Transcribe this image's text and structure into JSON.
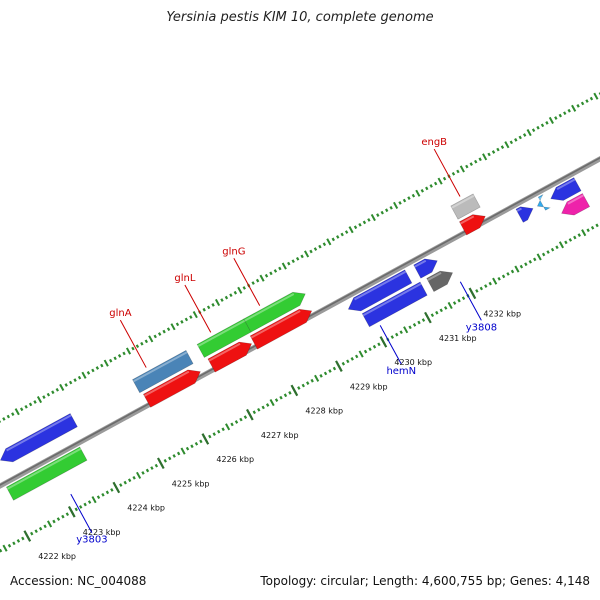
{
  "title": "Yersinia pestis KIM 10, complete genome",
  "footer": {
    "accession": "Accession: NC_004088",
    "summary": "Topology: circular; Length: 4,600,755 bp; Genes: 4,148"
  },
  "colors": {
    "backbone": "#8a8a8a",
    "tick": "#2e8b2e",
    "kbp_tick": "#2f6f2f",
    "forward_label": "#cc0000",
    "reverse_label": "#0000cc"
  },
  "map": {
    "kbp_ticks": [
      {
        "kbp": 4222,
        "label": "4222 kbp"
      },
      {
        "kbp": 4223,
        "label": "4223 kbp"
      },
      {
        "kbp": 4224,
        "label": "4224 kbp"
      },
      {
        "kbp": 4225,
        "label": "4225 kbp"
      },
      {
        "kbp": 4226,
        "label": "4226 kbp"
      },
      {
        "kbp": 4227,
        "label": "4227 kbp"
      },
      {
        "kbp": 4228,
        "label": "4228 kbp"
      },
      {
        "kbp": 4229,
        "label": "4229 kbp"
      },
      {
        "kbp": 4230,
        "label": "4230 kbp"
      },
      {
        "kbp": 4231,
        "label": "4231 kbp"
      },
      {
        "kbp": 4232,
        "label": "4232 kbp"
      }
    ],
    "features": [
      {
        "track": "f2",
        "start": 4222.25,
        "end": 4223.9,
        "color": "#2b33e0",
        "arrow": "left"
      },
      {
        "track": "r1",
        "start": 4222.1,
        "end": 4223.75,
        "color": "#33cc33",
        "arrow": "none"
      },
      {
        "track": "f2",
        "start": 4225.3,
        "end": 4226.5,
        "color": "#4a84b7",
        "arrow": "none"
      },
      {
        "track": "f1",
        "start": 4225.35,
        "end": 4226.55,
        "color": "#ee1111",
        "arrow": "right"
      },
      {
        "track": "f2",
        "start": 4226.75,
        "end": 4227.8,
        "color": "#33cc33",
        "arrow": "none"
      },
      {
        "track": "f1",
        "start": 4226.8,
        "end": 4227.7,
        "color": "#ee1111",
        "arrow": "right"
      },
      {
        "track": "f2",
        "start": 4227.8,
        "end": 4229.1,
        "color": "#33cc33",
        "arrow": "right"
      },
      {
        "track": "f1",
        "start": 4227.75,
        "end": 4229.05,
        "color": "#ee1111",
        "arrow": "right"
      },
      {
        "track": "r1",
        "start": 4229.7,
        "end": 4231.05,
        "color": "#2b33e0",
        "arrow": "left"
      },
      {
        "track": "r2",
        "start": 4229.9,
        "end": 4231.2,
        "color": "#2b33e0",
        "arrow": "none"
      },
      {
        "track": "r1",
        "start": 4231.25,
        "end": 4231.7,
        "color": "#2b33e0",
        "arrow": "right"
      },
      {
        "track": "r2",
        "start": 4231.35,
        "end": 4231.85,
        "color": "#666666",
        "arrow": "right"
      },
      {
        "track": "f2",
        "start": 4232.45,
        "end": 4232.95,
        "color": "#bbbbbb",
        "arrow": "none"
      },
      {
        "track": "f1",
        "start": 4232.45,
        "end": 4232.95,
        "color": "#ee1111",
        "arrow": "right"
      },
      {
        "track": "r1",
        "start": 4233.55,
        "end": 4233.85,
        "color": "#2b33e0",
        "arrow": "right"
      },
      {
        "track": "r1",
        "start": 4233.95,
        "end": 4234.05,
        "color": "#33aaee",
        "arrow": "left"
      },
      {
        "track": "r1",
        "start": 4234.25,
        "end": 4234.85,
        "color": "#2b33e0",
        "arrow": "left"
      },
      {
        "track": "r2",
        "start": 4234.3,
        "end": 4234.85,
        "color": "#ee22aa",
        "arrow": "left"
      }
    ],
    "gene_labels": [
      {
        "text": "glnA",
        "color": "#cc0000",
        "pos": 4225.65,
        "side": "top"
      },
      {
        "text": "glnL",
        "color": "#cc0000",
        "pos": 4227.1,
        "side": "top"
      },
      {
        "text": "glnG",
        "color": "#cc0000",
        "pos": 4228.2,
        "side": "top"
      },
      {
        "text": "engB",
        "color": "#cc0000",
        "pos": 4232.7,
        "side": "top"
      },
      {
        "text": "y3803",
        "color": "#0000cc",
        "pos": 4223.15,
        "side": "bottom"
      },
      {
        "text": "hemN",
        "color": "#0000cc",
        "pos": 4230.1,
        "side": "bottom"
      },
      {
        "text": "y3808",
        "color": "#0000cc",
        "pos": 4231.9,
        "side": "bottom"
      }
    ]
  }
}
